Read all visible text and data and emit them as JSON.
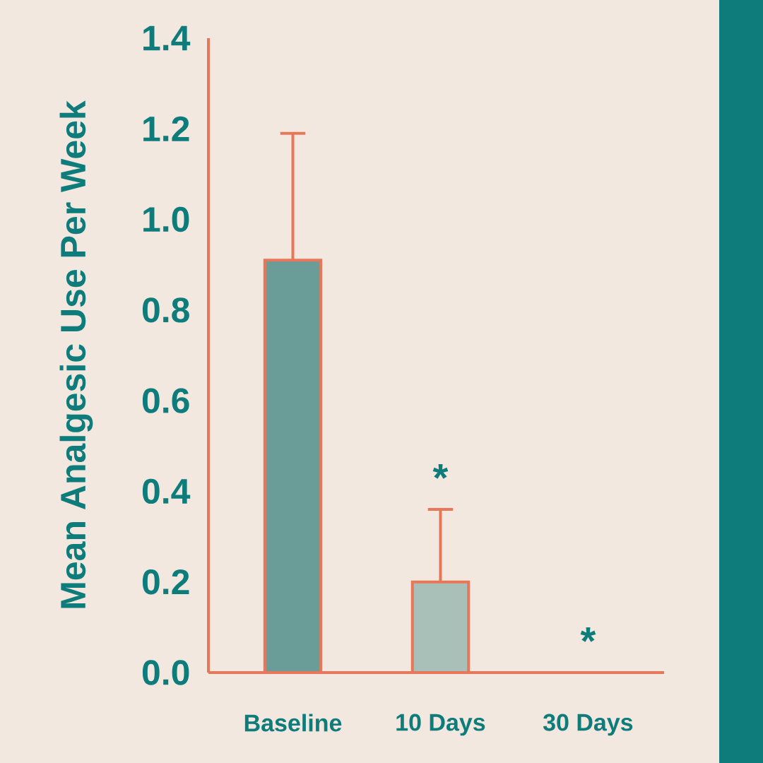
{
  "chart_data": {
    "type": "bar",
    "ylabel": "Mean Analgesic Use Per Week",
    "categories": [
      "Baseline",
      "10 Days",
      "30 Days"
    ],
    "values": [
      0.91,
      0.2,
      0
    ],
    "colors": [
      "#6a9c98",
      "#a9c0b8",
      null
    ],
    "errors": [
      [
        0.91,
        1.19
      ],
      [
        0.2,
        0.36
      ],
      null
    ],
    "ylim": [
      0,
      1.4
    ],
    "yticks": [
      {
        "value": 0,
        "label": "0.0"
      },
      0.2,
      0.4,
      0.6,
      0.8,
      {
        "value": 1,
        "label": "1.0"
      },
      1.2,
      1.4
    ],
    "annotations": [
      "*",
      "*"
    ]
  }
}
